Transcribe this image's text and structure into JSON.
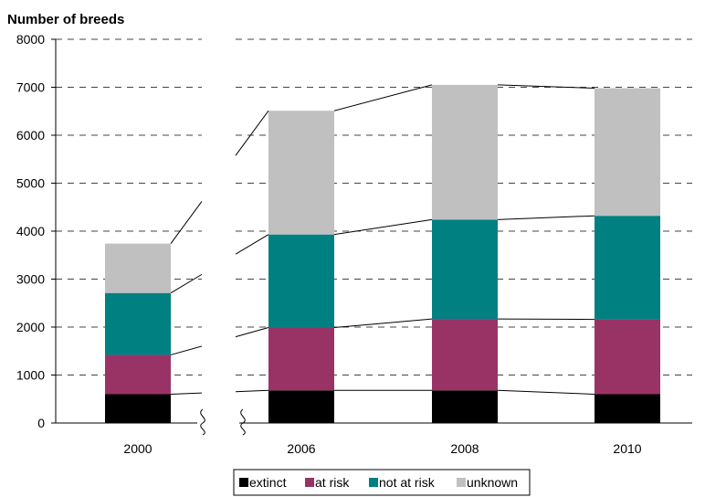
{
  "chart_data": {
    "type": "bar",
    "stacked": true,
    "title": "Number of breeds",
    "xlabel": "",
    "ylabel": "",
    "categories": [
      "2000",
      "2006",
      "2008",
      "2010"
    ],
    "axis_break_between": [
      "2000",
      "2006"
    ],
    "ylim": [
      0,
      8000
    ],
    "yticks": [
      0,
      1000,
      2000,
      3000,
      4000,
      5000,
      6000,
      7000,
      8000
    ],
    "grid": "dashed horizontal",
    "legend_position": "bottom",
    "series": [
      {
        "name": "extinct",
        "color": "#000000",
        "values": [
          600,
          680,
          680,
          600
        ]
      },
      {
        "name": "at risk",
        "color": "#993366",
        "values": [
          820,
          1310,
          1490,
          1560
        ]
      },
      {
        "name": "not at risk",
        "color": "#008080",
        "values": [
          1290,
          1940,
          2070,
          2160
        ]
      },
      {
        "name": "unknown",
        "color": "#C0C0C0",
        "values": [
          1030,
          2580,
          2810,
          2660
        ]
      }
    ]
  }
}
